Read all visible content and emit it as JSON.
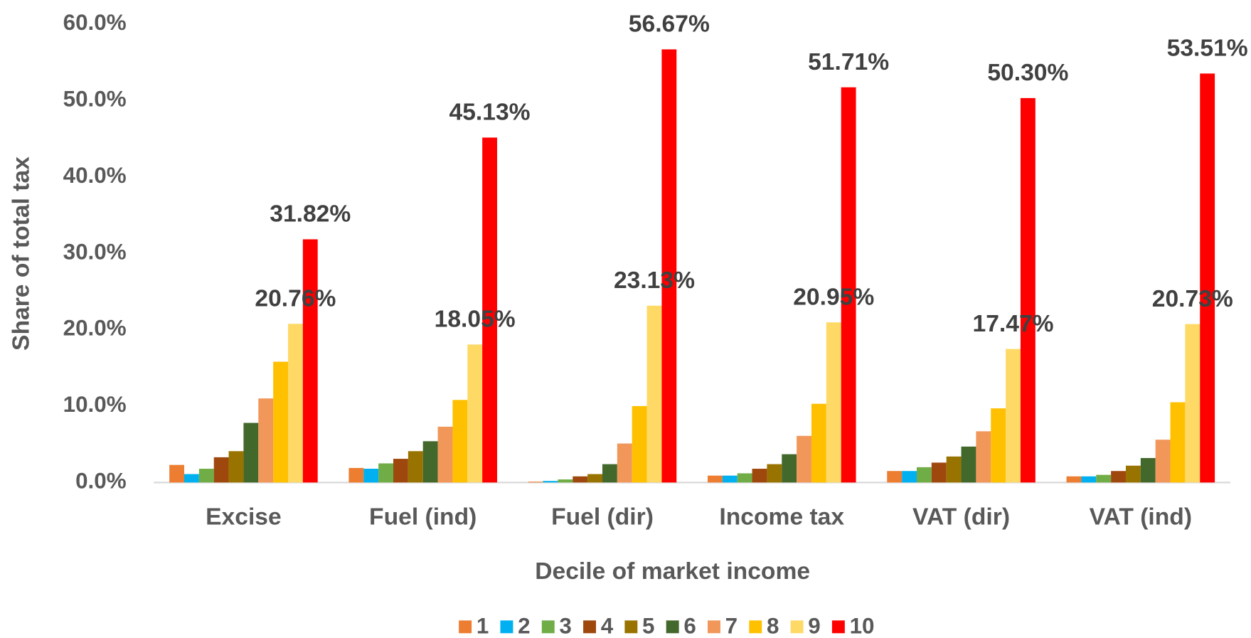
{
  "chart_data": {
    "type": "bar",
    "x_label": "Decile of market income",
    "y_label": "Share of total tax",
    "categories": [
      "Excise",
      "Fuel (ind)",
      "Fuel (dir)",
      "Income tax",
      "VAT (dir)",
      "VAT (ind)"
    ],
    "ylim": [
      0,
      60
    ],
    "yticks": [
      {
        "value": 0,
        "label": "0.0%"
      },
      {
        "value": 10,
        "label": "10.0%"
      },
      {
        "value": 20,
        "label": "20.0%"
      },
      {
        "value": 30,
        "label": "30.0%"
      },
      {
        "value": 40,
        "label": "40.0%"
      },
      {
        "value": 50,
        "label": "50.0%"
      },
      {
        "value": 60,
        "label": "60.0%"
      }
    ],
    "legend": "bottom",
    "series": [
      {
        "name": "1",
        "color": "#ed7d31",
        "values": [
          2.3,
          1.9,
          0.1,
          0.9,
          1.5,
          0.8
        ]
      },
      {
        "name": "2",
        "color": "#00b0f0",
        "values": [
          1.1,
          1.8,
          0.2,
          0.9,
          1.5,
          0.8
        ]
      },
      {
        "name": "3",
        "color": "#70ad47",
        "values": [
          1.8,
          2.5,
          0.4,
          1.2,
          2.0,
          1.0
        ]
      },
      {
        "name": "4",
        "color": "#9e480e",
        "values": [
          3.3,
          3.1,
          0.8,
          1.8,
          2.6,
          1.5
        ]
      },
      {
        "name": "5",
        "color": "#997300",
        "values": [
          4.1,
          4.1,
          1.1,
          2.4,
          3.4,
          2.2
        ]
      },
      {
        "name": "6",
        "color": "#43682b",
        "values": [
          7.8,
          5.4,
          2.4,
          3.7,
          4.7,
          3.2
        ]
      },
      {
        "name": "7",
        "color": "#f1975a",
        "values": [
          11.0,
          7.3,
          5.1,
          6.1,
          6.7,
          5.6
        ]
      },
      {
        "name": "8",
        "color": "#ffc000",
        "values": [
          15.8,
          10.8,
          10.0,
          10.3,
          9.7,
          10.5
        ]
      },
      {
        "name": "9",
        "color": "#ffd966",
        "values": [
          20.76,
          18.05,
          23.13,
          20.95,
          17.47,
          20.73
        ],
        "value_labels": [
          "20.76%",
          "18.05%",
          "23.13%",
          "20.95%",
          "17.47%",
          "20.73%"
        ]
      },
      {
        "name": "10",
        "color": "#ff0000",
        "values": [
          31.82,
          45.13,
          56.67,
          51.71,
          50.3,
          53.51
        ],
        "value_labels": [
          "31.82%",
          "45.13%",
          "56.67%",
          "51.71%",
          "50.30%",
          "53.51%"
        ]
      }
    ]
  }
}
